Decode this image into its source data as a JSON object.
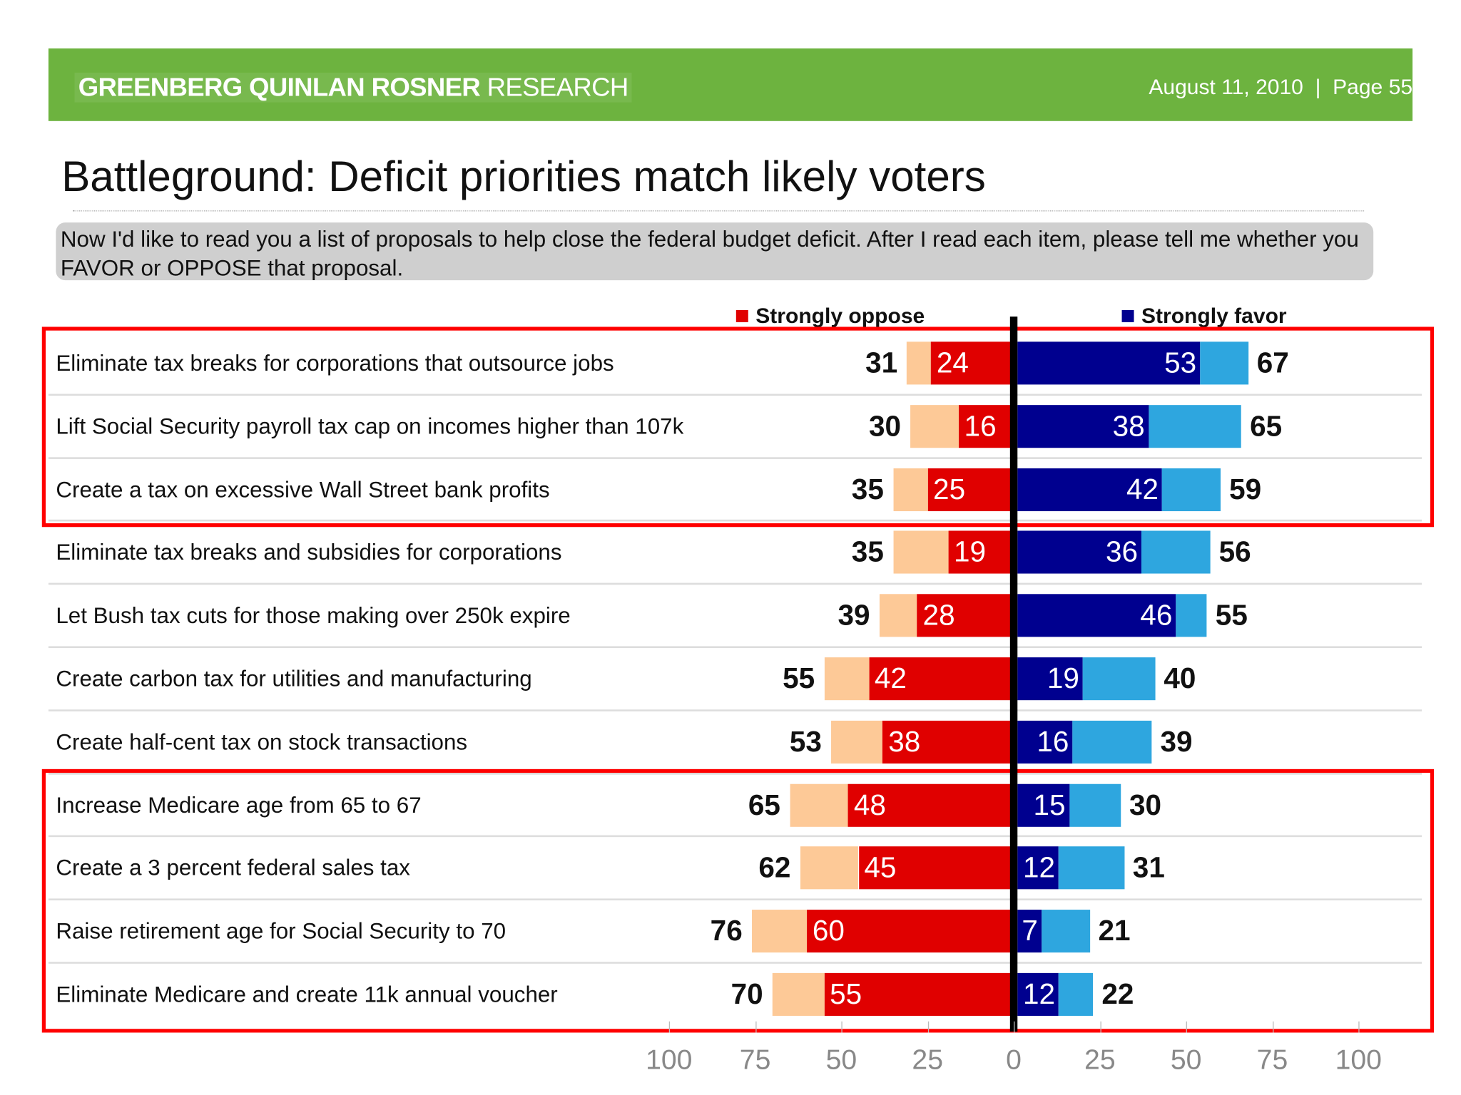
{
  "header": {
    "logo_bold": "GREENBERG QUINLAN ROSNER",
    "logo_light": "RESEARCH",
    "date": "August 11, 2010",
    "page": "Page 55"
  },
  "title": "Battleground: Deficit priorities match likely voters",
  "question": "Now I'd like to read you a list of proposals to help close the federal budget deficit. After I read each item, please tell me whether you FAVOR or OPPOSE that proposal.",
  "colors": {
    "header": "#6db33f",
    "strongly_oppose": "#e00000",
    "oppose": "#fdc997",
    "strongly_favor": "#00008f",
    "favor": "#2ea6df",
    "highlight_box": "#ff0000"
  },
  "chart_data": {
    "type": "bar",
    "orientation": "horizontal-diverging-stacked",
    "legend": [
      "Strongly oppose",
      "Strongly favor"
    ],
    "xlim": [
      -100,
      100
    ],
    "tick_labels": [
      "100",
      "75",
      "50",
      "25",
      "0",
      "25",
      "50",
      "75",
      "100"
    ],
    "highlighted_groups": [
      [
        0,
        2
      ],
      [
        7,
        10
      ]
    ],
    "rows": [
      {
        "label": "Eliminate tax breaks for corporations that outsource jobs",
        "oppose_total": 31,
        "strongly_oppose": 24,
        "strongly_favor": 53,
        "favor_total": 67
      },
      {
        "label": "Lift Social Security payroll tax cap on incomes higher than 107k",
        "oppose_total": 30,
        "strongly_oppose": 16,
        "strongly_favor": 38,
        "favor_total": 65
      },
      {
        "label": "Create a tax on excessive Wall Street bank profits",
        "oppose_total": 35,
        "strongly_oppose": 25,
        "strongly_favor": 42,
        "favor_total": 59
      },
      {
        "label": "Eliminate tax breaks and subsidies for corporations",
        "oppose_total": 35,
        "strongly_oppose": 19,
        "strongly_favor": 36,
        "favor_total": 56
      },
      {
        "label": "Let Bush tax cuts for those making over 250k expire",
        "oppose_total": 39,
        "strongly_oppose": 28,
        "strongly_favor": 46,
        "favor_total": 55
      },
      {
        "label": "Create carbon tax for utilities and manufacturing",
        "oppose_total": 55,
        "strongly_oppose": 42,
        "strongly_favor": 19,
        "favor_total": 40
      },
      {
        "label": "Create half-cent tax on stock transactions",
        "oppose_total": 53,
        "strongly_oppose": 38,
        "strongly_favor": 16,
        "favor_total": 39
      },
      {
        "label": "Increase Medicare age from 65 to 67",
        "oppose_total": 65,
        "strongly_oppose": 48,
        "strongly_favor": 15,
        "favor_total": 30
      },
      {
        "label": "Create a 3 percent federal sales tax",
        "oppose_total": 62,
        "strongly_oppose": 45,
        "strongly_favor": 12,
        "favor_total": 31
      },
      {
        "label": "Raise retirement age for Social Security to 70",
        "oppose_total": 76,
        "strongly_oppose": 60,
        "strongly_favor": 7,
        "favor_total": 21
      },
      {
        "label": "Eliminate Medicare and create 11k annual voucher",
        "oppose_total": 70,
        "strongly_oppose": 55,
        "strongly_favor": 12,
        "favor_total": 22
      }
    ]
  }
}
